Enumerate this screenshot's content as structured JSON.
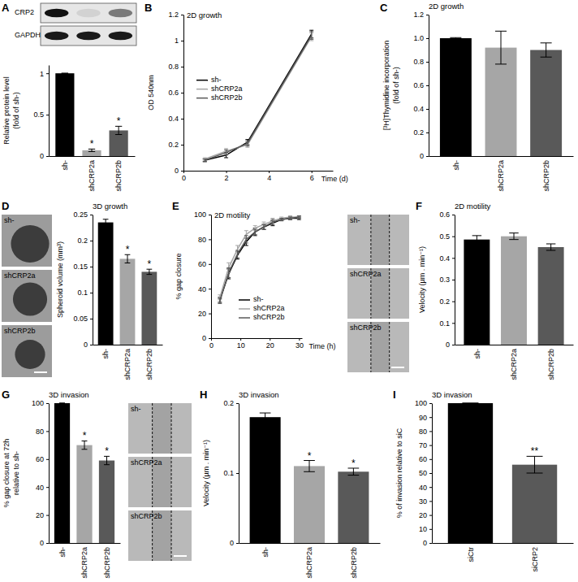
{
  "chart_data": [
    {
      "panel": "A",
      "type": "bar",
      "categories": [
        "sh-",
        "shCRP2a",
        "shCRP2b"
      ],
      "values": [
        1,
        0.07,
        0.31
      ],
      "errors": [
        0,
        0.015,
        0.05
      ],
      "significance": [
        null,
        "*",
        "*"
      ],
      "colors": [
        "#000000",
        "#a6a6a6",
        "#595959"
      ],
      "ylabel": [
        "Relative protein level",
        "(fold of sh-)"
      ],
      "ylim": [
        0,
        1.1
      ],
      "yticks": [
        0,
        0.5,
        1
      ],
      "blot_labels": [
        "CRP2",
        "GAPDH"
      ]
    },
    {
      "panel": "B",
      "type": "line",
      "title": "2D growth",
      "x": [
        1,
        2,
        3,
        6
      ],
      "xlim": [
        0,
        7
      ],
      "xticks": [
        0,
        2,
        4,
        6
      ],
      "xlabel": "Time (d)",
      "ylabel": "OD 540nm",
      "ylim": [
        0,
        1.2
      ],
      "yticks": [
        0,
        0.2,
        0.4,
        0.6,
        0.8,
        1,
        1.2
      ],
      "legend": "left",
      "series": [
        {
          "name": "sh-",
          "color": "#000000",
          "values": [
            0.08,
            0.12,
            0.22,
            1.05
          ],
          "errors": [
            0.01,
            0.02,
            0.02,
            0.03
          ]
        },
        {
          "name": "shCRP2a",
          "color": "#a6a6a6",
          "values": [
            0.09,
            0.15,
            0.2,
            1.03
          ],
          "errors": [
            0.01,
            0.02,
            0.02,
            0.03
          ]
        },
        {
          "name": "shCRP2b",
          "color": "#595959",
          "values": [
            0.08,
            0.14,
            0.21,
            1.04
          ],
          "errors": [
            0.01,
            0.02,
            0.02,
            0.03
          ]
        }
      ]
    },
    {
      "panel": "C",
      "type": "bar",
      "title": "2D growth",
      "categories": [
        "sh-",
        "shCRP2a",
        "shCRP2b"
      ],
      "values": [
        1,
        0.92,
        0.9
      ],
      "errors": [
        0.005,
        0.14,
        0.06
      ],
      "colors": [
        "#000000",
        "#a6a6a6",
        "#595959"
      ],
      "ylabel": [
        "[³H]Thymidine incorporation",
        "(fold of sh-)"
      ],
      "ylim": [
        0,
        1.2
      ],
      "yticks": [
        0,
        0.2,
        0.4,
        0.6,
        0.8,
        {
          "value": 1,
          "label": "1.0"
        },
        1.2
      ]
    },
    {
      "panel": "D",
      "type": "bar",
      "title": "3D growth",
      "categories": [
        "sh-",
        "shCRP2a",
        "shCRP2b"
      ],
      "values": [
        0.235,
        0.165,
        0.14
      ],
      "errors": [
        0.006,
        0.008,
        0.005
      ],
      "significance": [
        null,
        "*",
        "*"
      ],
      "colors": [
        "#000000",
        "#a6a6a6",
        "#595959"
      ],
      "ylabel": "Spheroid volume (mm³)",
      "ylim": [
        0,
        0.25
      ],
      "yticks": [
        0,
        0.05,
        0.1,
        0.15,
        0.2,
        0.25
      ],
      "image_labels": [
        "sh-",
        "shCRP2a",
        "shCRP2b"
      ]
    },
    {
      "panel": "E",
      "type": "line",
      "title": "2D motility",
      "x": [
        3,
        6,
        9,
        12,
        15,
        18,
        21,
        24,
        27,
        30
      ],
      "xlim": [
        0,
        31
      ],
      "xticks": [
        0,
        10,
        20,
        30
      ],
      "xlabel": "Time (h)",
      "ylabel": "% gap closure",
      "ylim": [
        0,
        100
      ],
      "yticks": [
        0,
        20,
        40,
        60,
        80,
        100
      ],
      "legend": "lower right",
      "series": [
        {
          "name": "sh-",
          "color": "#000000",
          "values": [
            31,
            52,
            67,
            78,
            86,
            90,
            93,
            96,
            97,
            97
          ],
          "errors": [
            2,
            4,
            3,
            3,
            3,
            2,
            2,
            1,
            1,
            1
          ]
        },
        {
          "name": "shCRP2a",
          "color": "#a6a6a6",
          "values": [
            33,
            57,
            72,
            84,
            89,
            92,
            95,
            97,
            98,
            98
          ],
          "errors": [
            2,
            4,
            3,
            3,
            2,
            2,
            2,
            1,
            1,
            1
          ]
        },
        {
          "name": "shCRP2b",
          "color": "#595959",
          "values": [
            30,
            53,
            68,
            80,
            86,
            90,
            94,
            96,
            97,
            98
          ],
          "errors": [
            2,
            4,
            3,
            3,
            2,
            2,
            2,
            1,
            1,
            1
          ]
        }
      ],
      "image_labels": [
        "sh-",
        "shCRP2a",
        "shCRP2b"
      ]
    },
    {
      "panel": "F",
      "type": "bar",
      "title": "2D motility",
      "categories": [
        "sh-",
        "shCRP2a",
        "shCRP2b"
      ],
      "values": [
        0.485,
        0.5,
        0.45
      ],
      "errors": [
        0.018,
        0.015,
        0.015
      ],
      "colors": [
        "#000000",
        "#a6a6a6",
        "#595959"
      ],
      "ylabel": "Velocity (µm . min⁻¹)",
      "ylim": [
        0,
        0.6
      ],
      "yticks": [
        0,
        0.1,
        0.2,
        0.3,
        0.4,
        0.5,
        0.6
      ]
    },
    {
      "panel": "G",
      "type": "bar",
      "title": "3D invasion",
      "categories": [
        "sh-",
        "shCRP2a",
        "shCRP2b"
      ],
      "values": [
        100,
        70,
        59
      ],
      "errors": [
        0,
        3,
        3
      ],
      "significance": [
        null,
        "*",
        "*"
      ],
      "colors": [
        "#000000",
        "#a6a6a6",
        "#595959"
      ],
      "ylabel": [
        "% gap closure at 72h",
        "relative to sh-"
      ],
      "ylim": [
        0,
        100
      ],
      "yticks": [
        0,
        20,
        40,
        60,
        80,
        100
      ],
      "image_labels": [
        "sh-",
        "shCRP2a",
        "shCRP2b"
      ]
    },
    {
      "panel": "H",
      "type": "bar",
      "title": "3D invasion",
      "categories": [
        "sh-",
        "shCRP2a",
        "shCRP2b"
      ],
      "values": [
        0.18,
        0.11,
        0.102
      ],
      "errors": [
        0.006,
        0.008,
        0.005
      ],
      "significance": [
        null,
        "*",
        "*"
      ],
      "colors": [
        "#000000",
        "#a6a6a6",
        "#595959"
      ],
      "ylabel": "Velocity (µm . min⁻¹)",
      "ylim": [
        0,
        0.2
      ],
      "yticks": [
        0,
        0.1,
        0.2
      ]
    },
    {
      "panel": "I",
      "type": "bar",
      "title": "3D invasion",
      "categories": [
        "siCtr",
        "siCRP2"
      ],
      "values": [
        100,
        56
      ],
      "errors": [
        0,
        6
      ],
      "significance": [
        null,
        "**"
      ],
      "colors": [
        "#000000",
        "#595959"
      ],
      "ylabel": "% of invasion relative to siC",
      "ylim": [
        0,
        100
      ],
      "yticks": [
        0,
        10,
        20,
        30,
        40,
        50,
        60,
        70,
        80,
        90,
        100
      ]
    }
  ]
}
